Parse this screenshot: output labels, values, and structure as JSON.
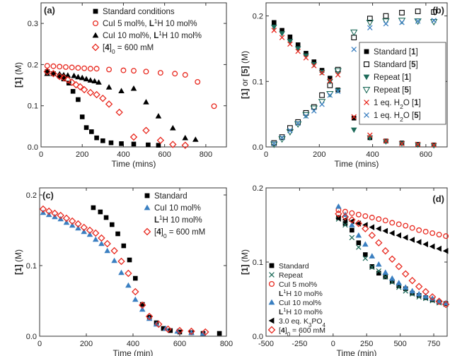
{
  "chart_data": [
    {
      "panel": "(a)",
      "type": "scatter",
      "xlabel": "Time (mins)",
      "ylabel": "[1] (M)",
      "xlim": [
        0,
        900
      ],
      "ylim": [
        0,
        0.35
      ],
      "xticks": [
        "0",
        "200",
        "400",
        "600",
        "800"
      ],
      "yticks": [
        "0.0",
        "0.1",
        "0.2",
        "0.3"
      ],
      "legend_position": "top-right",
      "series": [
        {
          "name": "Standard conditions",
          "marker": "square",
          "color": "#000000",
          "x": [
            30,
            60,
            90,
            110,
            135,
            155,
            180,
            200,
            220,
            245,
            270,
            300,
            340,
            390,
            450,
            520,
            570
          ],
          "y": [
            0.183,
            0.178,
            0.172,
            0.165,
            0.155,
            0.135,
            0.115,
            0.073,
            0.047,
            0.037,
            0.022,
            0.015,
            0.01,
            0.008,
            0.007,
            0.005,
            0.004
          ]
        },
        {
          "name": "CuI 5 mol%, L1H 10 mol%",
          "marker": "circle",
          "color": "#e8281e",
          "x": [
            30,
            60,
            90,
            120,
            150,
            180,
            210,
            240,
            270,
            330,
            400,
            450,
            510,
            580,
            650,
            700,
            760,
            840
          ],
          "y": [
            0.197,
            0.196,
            0.195,
            0.194,
            0.193,
            0.192,
            0.191,
            0.19,
            0.19,
            0.188,
            0.186,
            0.185,
            0.183,
            0.18,
            0.178,
            0.175,
            0.158,
            0.099
          ]
        },
        {
          "name": "CuI 10 mol%, L1H 10 mol%",
          "marker": "triangle",
          "color": "#000000",
          "x": [
            30,
            60,
            90,
            110,
            130,
            160,
            180,
            200,
            220,
            240,
            260,
            280,
            330,
            390,
            450,
            510,
            570,
            640,
            700,
            750
          ],
          "y": [
            0.178,
            0.178,
            0.177,
            0.175,
            0.174,
            0.173,
            0.17,
            0.168,
            0.165,
            0.162,
            0.16,
            0.157,
            0.145,
            0.136,
            0.142,
            0.109,
            0.075,
            0.046,
            0.022,
            0.018
          ]
        },
        {
          "name": "[4]0 = 600 mM",
          "marker": "diamond",
          "color": "#e8281e",
          "x": [
            30,
            60,
            90,
            110,
            130,
            150,
            170,
            190,
            210,
            240,
            270,
            300,
            330,
            380,
            450,
            510,
            580,
            640,
            700
          ],
          "y": [
            0.183,
            0.178,
            0.171,
            0.168,
            0.163,
            0.157,
            0.151,
            0.146,
            0.139,
            0.132,
            0.127,
            0.118,
            0.104,
            0.084,
            0.024,
            0.04,
            0.016,
            0.006,
            0.004
          ]
        }
      ]
    },
    {
      "panel": "(b)",
      "type": "scatter",
      "xlabel": "Time (mins)",
      "ylabel": "[1] or [5] (M)",
      "xlim": [
        0,
        680
      ],
      "ylim": [
        0,
        0.22
      ],
      "xticks": [
        "0",
        "200",
        "400",
        "600"
      ],
      "yticks": [
        "0.0",
        "0.1",
        "0.2"
      ],
      "legend_position": "right",
      "series": [
        {
          "name": "Standard [1]",
          "marker": "square",
          "color": "#000000",
          "x": [
            30,
            60,
            90,
            120,
            150,
            180,
            210,
            240,
            270,
            330,
            390,
            450,
            510,
            570,
            630
          ],
          "y": [
            0.19,
            0.178,
            0.168,
            0.156,
            0.143,
            0.13,
            0.117,
            0.105,
            0.087,
            0.044,
            0.014,
            0.009,
            0.006,
            0.004,
            0.003
          ]
        },
        {
          "name": "Standard [5]",
          "marker": "square-open",
          "color": "#000000",
          "x": [
            30,
            60,
            90,
            120,
            150,
            180,
            210,
            240,
            270,
            330,
            390,
            450,
            510,
            570,
            630
          ],
          "y": [
            0.006,
            0.015,
            0.029,
            0.038,
            0.052,
            0.061,
            0.079,
            0.094,
            0.118,
            0.167,
            0.196,
            0.2,
            0.205,
            0.207,
            0.206
          ]
        },
        {
          "name": "Repeat [1]",
          "marker": "triangle-down",
          "color": "#1e6b5a",
          "x": [
            30,
            60,
            90,
            120,
            150,
            180,
            210,
            240,
            270,
            330,
            390,
            450,
            510,
            570,
            630
          ],
          "y": [
            0.183,
            0.173,
            0.161,
            0.15,
            0.139,
            0.126,
            0.114,
            0.1,
            0.086,
            0.026,
            0.014,
            0.008,
            0.005,
            0.003,
            0.002
          ]
        },
        {
          "name": "Repeat [5]",
          "marker": "triangle-down-open",
          "color": "#1e6b5a",
          "x": [
            30,
            60,
            90,
            120,
            150,
            180,
            210,
            240,
            270,
            330,
            390,
            450,
            510,
            570,
            630
          ],
          "y": [
            0.004,
            0.012,
            0.023,
            0.035,
            0.049,
            0.059,
            0.069,
            0.081,
            0.116,
            0.175,
            0.19,
            0.192,
            0.193,
            0.192,
            0.191
          ]
        },
        {
          "name": "1 eq. H2O [1]",
          "marker": "x",
          "color": "#e8281e",
          "x": [
            30,
            60,
            90,
            120,
            150,
            180,
            210,
            240,
            270,
            330,
            390,
            450,
            510,
            570,
            630
          ],
          "y": [
            0.178,
            0.167,
            0.157,
            0.146,
            0.136,
            0.124,
            0.113,
            0.101,
            0.11,
            0.046,
            0.018,
            0.009,
            0.005,
            0.004,
            0.003
          ]
        },
        {
          "name": "1 eq. H2O [5]",
          "marker": "x",
          "color": "#3a7fc1",
          "x": [
            30,
            60,
            90,
            120,
            150,
            180,
            210,
            240,
            270,
            330,
            390,
            450,
            510,
            570,
            630
          ],
          "y": [
            0.005,
            0.014,
            0.025,
            0.036,
            0.047,
            0.055,
            0.065,
            0.079,
            0.085,
            0.149,
            0.182,
            0.188,
            0.19,
            0.192,
            0.193
          ]
        }
      ]
    },
    {
      "panel": "(c)",
      "type": "scatter",
      "xlabel": "Time (min)",
      "ylabel": "[1] (M)",
      "xlim": [
        0,
        800
      ],
      "ylim": [
        0,
        0.21
      ],
      "xticks": [
        "0",
        "200",
        "400",
        "600",
        "800"
      ],
      "yticks": [
        "0.0",
        "0.1",
        "0.2"
      ],
      "legend_position": "top-right",
      "series": [
        {
          "name": "Standard",
          "marker": "square",
          "color": "#000000",
          "x": [
            230,
            260,
            285,
            310,
            335,
            360,
            385,
            410,
            440,
            470,
            500,
            530,
            560,
            600,
            650,
            700,
            770
          ],
          "y": [
            0.182,
            0.176,
            0.168,
            0.158,
            0.145,
            0.128,
            0.108,
            0.082,
            0.045,
            0.027,
            0.019,
            0.011,
            0.008,
            0.006,
            0.005,
            0.004,
            0.004
          ]
        },
        {
          "name": "CuI 10 mol% L1H 10 mol%",
          "marker": "triangle",
          "color": "#3a7fc1",
          "x": [
            15,
            40,
            65,
            90,
            115,
            140,
            165,
            190,
            215,
            240,
            265,
            290,
            320,
            350,
            380,
            410,
            440,
            470,
            500,
            540,
            590,
            650,
            700
          ],
          "y": [
            0.175,
            0.172,
            0.169,
            0.166,
            0.161,
            0.157,
            0.153,
            0.148,
            0.144,
            0.137,
            0.131,
            0.121,
            0.107,
            0.09,
            0.072,
            0.052,
            0.038,
            0.025,
            0.017,
            0.011,
            0.007,
            0.005,
            0.004
          ]
        },
        {
          "name": "[4]0 = 600 mM",
          "marker": "diamond",
          "color": "#e8281e",
          "x": [
            15,
            40,
            65,
            90,
            115,
            140,
            165,
            190,
            215,
            240,
            265,
            290,
            320,
            350,
            380,
            410,
            440,
            470,
            510,
            550,
            600,
            650,
            710
          ],
          "y": [
            0.18,
            0.177,
            0.174,
            0.171,
            0.167,
            0.163,
            0.159,
            0.154,
            0.15,
            0.146,
            0.139,
            0.131,
            0.121,
            0.106,
            0.089,
            0.063,
            0.044,
            0.028,
            0.017,
            0.01,
            0.008,
            0.007,
            0.006
          ]
        }
      ]
    },
    {
      "panel": "(d)",
      "type": "scatter",
      "xlabel": "Time (min)",
      "ylabel": "[1] (M)",
      "xlim": [
        -500,
        850
      ],
      "ylim": [
        0,
        0.2
      ],
      "xticks": [
        "-500",
        "-250",
        "0",
        "250",
        "500",
        "750"
      ],
      "yticks": [
        "0.0",
        "0.1",
        "0.2"
      ],
      "legend_position": "bottom-left",
      "series": [
        {
          "name": "Standard",
          "marker": "square",
          "color": "#000000",
          "x": [
            40,
            90,
            140,
            190,
            240,
            290,
            340,
            390,
            440,
            490,
            540,
            590,
            640,
            690,
            740,
            790,
            840
          ],
          "y": [
            0.16,
            0.152,
            0.143,
            0.126,
            0.11,
            0.094,
            0.085,
            0.08,
            0.074,
            0.068,
            0.064,
            0.058,
            0.055,
            0.052,
            0.049,
            0.046,
            0.044
          ]
        },
        {
          "name": "Repeat",
          "marker": "x",
          "color": "#1e6b5a",
          "x": [
            40,
            90,
            140,
            190,
            240,
            290,
            340,
            390,
            440,
            490,
            540,
            590,
            640,
            690,
            740,
            790,
            840
          ],
          "y": [
            0.158,
            0.15,
            0.133,
            0.12,
            0.105,
            0.093,
            0.088,
            0.08,
            0.073,
            0.066,
            0.061,
            0.057,
            0.053,
            0.051,
            0.048,
            0.045,
            0.043
          ]
        },
        {
          "name": "CuI 5 mol% L1H 10 mol%",
          "marker": "circle",
          "color": "#e8281e",
          "x": [
            40,
            90,
            140,
            190,
            240,
            290,
            340,
            390,
            440,
            490,
            540,
            590,
            640,
            690,
            740,
            790,
            840
          ],
          "y": [
            0.17,
            0.168,
            0.166,
            0.164,
            0.162,
            0.16,
            0.158,
            0.156,
            0.153,
            0.151,
            0.149,
            0.146,
            0.143,
            0.141,
            0.139,
            0.137,
            0.135
          ]
        },
        {
          "name": "CuI 10 mol% L1H 10 mol%",
          "marker": "triangle",
          "color": "#3a7fc1",
          "x": [
            40,
            90,
            140,
            190,
            240,
            290,
            340,
            390,
            440,
            490,
            540,
            590,
            640,
            690,
            740,
            790,
            840
          ],
          "y": [
            0.175,
            0.164,
            0.15,
            0.136,
            0.124,
            0.108,
            0.097,
            0.086,
            0.078,
            0.072,
            0.066,
            0.061,
            0.057,
            0.054,
            0.051,
            0.047,
            0.045
          ]
        },
        {
          "name": "3.0 eq. K3PO4",
          "marker": "triangle-left",
          "color": "#000000",
          "x": [
            40,
            90,
            140,
            190,
            240,
            290,
            340,
            390,
            440,
            490,
            540,
            590,
            640,
            690,
            740,
            790,
            840
          ],
          "y": [
            0.159,
            0.157,
            0.155,
            0.152,
            0.15,
            0.147,
            0.145,
            0.142,
            0.139,
            0.136,
            0.133,
            0.13,
            0.127,
            0.124,
            0.121,
            0.118,
            0.115
          ]
        },
        {
          "name": "[4]0 = 600 mM",
          "marker": "diamond",
          "color": "#e8281e",
          "x": [
            40,
            90,
            140,
            190,
            240,
            290,
            340,
            390,
            440,
            490,
            540,
            590,
            640,
            690,
            740,
            790,
            840
          ],
          "y": [
            0.165,
            0.161,
            0.157,
            0.152,
            0.145,
            0.136,
            0.126,
            0.115,
            0.104,
            0.094,
            0.084,
            0.075,
            0.067,
            0.06,
            0.053,
            0.047,
            0.043
          ]
        }
      ]
    }
  ],
  "legends": {
    "a": [
      "Standard conditions",
      "CuI 5 mol%, L1H 10 mol%",
      "CuI 10 mol%, L1H 10 mol%",
      "[4]0 = 600 mM"
    ],
    "b": [
      "Standard [1]",
      "Standard [5]",
      "Repeat [1]",
      "Repeat [5]",
      "1 eq. H2O [1]",
      "1 eq. H2O [5]"
    ],
    "c": [
      "Standard",
      "CuI 10 mol%",
      "L1H 10 mol%",
      "[4]0 = 600 mM"
    ],
    "d": [
      "Standard",
      "Repeat",
      "CuI 5 mol%",
      "L1H 10 mol%",
      "CuI 10 mol%",
      "L1H 10 mol%",
      "3.0 eq. K3PO4",
      "[4]0 = 600 mM"
    ]
  }
}
